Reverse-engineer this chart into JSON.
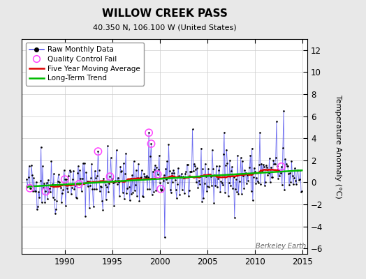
{
  "title": "WILLOW CREEK PASS",
  "subtitle": "40.350 N, 106.100 W (United States)",
  "ylabel": "Temperature Anomaly (°C)",
  "watermark": "Berkeley Earth",
  "xlim": [
    1985.5,
    2015.5
  ],
  "ylim": [
    -6.5,
    13.0
  ],
  "yticks": [
    -6,
    -4,
    -2,
    0,
    2,
    4,
    6,
    8,
    10,
    12
  ],
  "xticks": [
    1990,
    1995,
    2000,
    2005,
    2010,
    2015
  ],
  "bg_color": "#e8e8e8",
  "plot_bg_color": "#ffffff",
  "raw_line_color": "#5555ee",
  "raw_marker_color": "#000000",
  "ma_color": "#dd0000",
  "trend_color": "#00bb00",
  "qc_color": "#ff44ff",
  "seed": 42,
  "n_months": 348,
  "start_year": 1986.0,
  "trend_slope": 0.038,
  "trend_intercept": -0.28,
  "noise_scale": 1.15
}
